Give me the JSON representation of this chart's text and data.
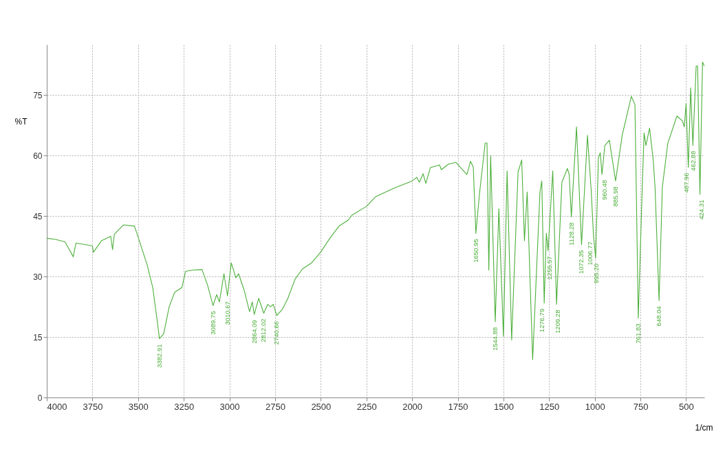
{
  "chart_data": {
    "type": "line",
    "xlabel": "1/cm",
    "ylabel": "%T",
    "xlim": [
      4000,
      400
    ],
    "xticks": [
      4000,
      3750,
      3500,
      3250,
      3000,
      2750,
      2500,
      2250,
      2000,
      1750,
      1500,
      1250,
      1000,
      750,
      500
    ],
    "ylim": [
      0,
      87.5
    ],
    "yticks": [
      0,
      15,
      30,
      45,
      60,
      75
    ],
    "grid": true,
    "line_style": "solid",
    "series": [
      {
        "color": "#4caf3a",
        "x": [
          4000,
          3950,
          3900,
          3855,
          3840,
          3800,
          3750,
          3745,
          3700,
          3650,
          3640,
          3630,
          3600,
          3580,
          3520,
          3500,
          3450,
          3420,
          3400,
          3382.91,
          3360,
          3330,
          3300,
          3260,
          3240,
          3200,
          3150,
          3120,
          3089.75,
          3070,
          3055,
          3030,
          3010.67,
          2990,
          2965,
          2950,
          2920,
          2890,
          2875,
          2864.09,
          2840,
          2812.02,
          2790,
          2775,
          2760,
          2740.66,
          2710,
          2680,
          2640,
          2600,
          2550,
          2500,
          2450,
          2400,
          2350,
          2330,
          2250,
          2200,
          2100,
          2000,
          1975,
          1960,
          1940,
          1925,
          1900,
          1850,
          1840,
          1800,
          1760,
          1700,
          1680,
          1665,
          1650.95,
          1630,
          1600,
          1590,
          1580,
          1570,
          1544.88,
          1525,
          1500,
          1480,
          1455,
          1420,
          1400,
          1385,
          1370,
          1340,
          1300,
          1290,
          1276.79,
          1265,
          1255.57,
          1230,
          1209.28,
          1180,
          1150,
          1140,
          1128.28,
          1100,
          1072.35,
          1040,
          1020,
          1006.77,
          995.2,
          980,
          970,
          960.48,
          945,
          920,
          885.98,
          850,
          800,
          780,
          761.83,
          740,
          730,
          720,
          700,
          680,
          670,
          648.04,
          630,
          600,
          550,
          520,
          510,
          500,
          487.96,
          475,
          462.88,
          445,
          437,
          424.31,
          410,
          400
        ],
        "values": [
          39.5,
          39.2,
          38.6,
          34.9,
          38.3,
          38,
          37.6,
          36,
          38.9,
          40,
          36.7,
          40.5,
          41.9,
          42.8,
          42.5,
          39.8,
          32.8,
          27.3,
          20.6,
          14.6,
          15.8,
          22.5,
          26.1,
          27.3,
          31.3,
          31.6,
          31.7,
          27.9,
          22.8,
          25.5,
          23.7,
          30.7,
          25.2,
          33.4,
          29.7,
          30.7,
          26.7,
          21.3,
          23.7,
          20.6,
          24.6,
          20.9,
          23.1,
          22.5,
          23.1,
          20.3,
          21.9,
          24.6,
          29.4,
          31.9,
          33.4,
          36.1,
          39.5,
          42.5,
          44,
          45.2,
          47.4,
          49.8,
          51.9,
          53.7,
          54.6,
          53.4,
          55.5,
          53.1,
          57,
          57.7,
          56.5,
          57.9,
          58.3,
          55.3,
          58.6,
          57.1,
          40.7,
          51,
          63.1,
          63.1,
          31.6,
          60,
          18.8,
          46.8,
          15.2,
          56.2,
          14.3,
          55.9,
          58.9,
          38.9,
          51,
          9.4,
          51,
          53.7,
          23.4,
          40.7,
          36.4,
          56.2,
          23.1,
          53.4,
          56.8,
          55.3,
          44.8,
          67.1,
          37.9,
          65,
          51.6,
          40,
          34.6,
          59.5,
          60.7,
          55.3,
          62.5,
          63.8,
          53.7,
          65,
          74.7,
          72.6,
          19.7,
          52.2,
          65.6,
          62.5,
          66.8,
          58.9,
          52.2,
          24,
          52.2,
          63.1,
          69.8,
          68.6,
          67.1,
          72.9,
          57.1,
          76.8,
          62.5,
          82.2,
          82.2,
          50.4,
          83.2,
          82.2
        ]
      }
    ],
    "annotations": [
      {
        "text": "3382.91",
        "x": 3382.91,
        "y": 14.6
      },
      {
        "text": "3089.75",
        "x": 3089.75,
        "y": 22.8
      },
      {
        "text": "3010.67",
        "x": 3010.67,
        "y": 25.2
      },
      {
        "text": "2864.09",
        "x": 2864.09,
        "y": 20.6
      },
      {
        "text": "2812.02",
        "x": 2812.02,
        "y": 20.9
      },
      {
        "text": "2740.66",
        "x": 2740.66,
        "y": 20.3
      },
      {
        "text": "1650.95",
        "x": 1650.95,
        "y": 40.7
      },
      {
        "text": "1544.88",
        "x": 1544.88,
        "y": 18.8
      },
      {
        "text": "1276.79",
        "x": 1276.79,
        "y": 23.4
      },
      {
        "text": "1255.57",
        "x": 1255.57,
        "y": 36.4
      },
      {
        "text": "1209.28",
        "x": 1209.28,
        "y": 23.1
      },
      {
        "text": "1128.28",
        "x": 1128.28,
        "y": 44.8
      },
      {
        "text": "1072.35",
        "x": 1072.35,
        "y": 37.9
      },
      {
        "text": "1006.77",
        "x": 1006.77,
        "y": 40
      },
      {
        "text": "995.20",
        "x": 995.2,
        "y": 34.6
      },
      {
        "text": "960.48",
        "x": 960.48,
        "y": 55.3
      },
      {
        "text": "885.98",
        "x": 885.98,
        "y": 53.7
      },
      {
        "text": "761.83",
        "x": 761.83,
        "y": 19.7
      },
      {
        "text": "648.04",
        "x": 648.04,
        "y": 24
      },
      {
        "text": "487.96",
        "x": 487.96,
        "y": 57.1
      },
      {
        "text": "462.88",
        "x": 462.88,
        "y": 62.5
      },
      {
        "text": "424.31",
        "x": 424.31,
        "y": 50.4
      }
    ]
  }
}
